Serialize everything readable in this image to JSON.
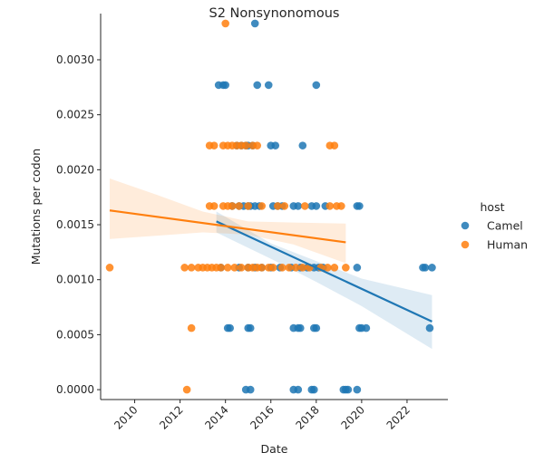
{
  "chart_data": {
    "type": "scatter",
    "title": "S2 Nonsynonomous",
    "xlabel": "Date",
    "ylabel": "Mutations per codon",
    "xlim": [
      2008.5,
      2023.8
    ],
    "ylim": [
      -9e-05,
      0.00342
    ],
    "x_ticks": [
      2010,
      2012,
      2014,
      2016,
      2018,
      2020,
      2022
    ],
    "x_tick_labels": [
      "2010",
      "2012",
      "2014",
      "2016",
      "2018",
      "2020",
      "2022"
    ],
    "y_ticks": [
      0,
      0.0005,
      0.001,
      0.0015,
      0.002,
      0.0025,
      0.003
    ],
    "y_tick_labels": [
      "0.0000",
      "0.0005",
      "0.0010",
      "0.0015",
      "0.0020",
      "0.0025",
      "0.0030"
    ],
    "grid": false,
    "legend": {
      "title": "host",
      "position": "right"
    },
    "series": [
      {
        "name": "Camel",
        "color": "#1f77b4",
        "points": [
          [
            2015.3,
            0.00333
          ],
          [
            2013.7,
            0.00277
          ],
          [
            2013.9,
            0.00277
          ],
          [
            2014.0,
            0.00277
          ],
          [
            2015.4,
            0.00277
          ],
          [
            2015.9,
            0.00277
          ],
          [
            2018.0,
            0.00277
          ],
          [
            2014.5,
            0.00222
          ],
          [
            2014.7,
            0.00222
          ],
          [
            2014.9,
            0.00222
          ],
          [
            2015.0,
            0.00222
          ],
          [
            2015.2,
            0.00222
          ],
          [
            2016.0,
            0.00222
          ],
          [
            2016.2,
            0.00222
          ],
          [
            2017.4,
            0.00222
          ],
          [
            2014.3,
            0.00167
          ],
          [
            2014.6,
            0.00167
          ],
          [
            2014.8,
            0.00167
          ],
          [
            2015.0,
            0.00167
          ],
          [
            2015.1,
            0.00167
          ],
          [
            2015.3,
            0.00167
          ],
          [
            2015.5,
            0.00167
          ],
          [
            2016.1,
            0.00167
          ],
          [
            2016.3,
            0.00167
          ],
          [
            2016.5,
            0.00167
          ],
          [
            2017.0,
            0.00167
          ],
          [
            2017.2,
            0.00167
          ],
          [
            2017.8,
            0.00167
          ],
          [
            2018.0,
            0.00167
          ],
          [
            2018.4,
            0.00167
          ],
          [
            2019.8,
            0.00167
          ],
          [
            2019.9,
            0.00167
          ],
          [
            2013.8,
            0.00111
          ],
          [
            2014.6,
            0.00111
          ],
          [
            2015.0,
            0.00111
          ],
          [
            2015.3,
            0.00111
          ],
          [
            2015.6,
            0.00111
          ],
          [
            2016.0,
            0.00111
          ],
          [
            2016.4,
            0.00111
          ],
          [
            2016.9,
            0.00111
          ],
          [
            2017.3,
            0.00111
          ],
          [
            2017.6,
            0.00111
          ],
          [
            2017.9,
            0.00111
          ],
          [
            2018.1,
            0.00111
          ],
          [
            2018.3,
            0.00111
          ],
          [
            2019.8,
            0.00111
          ],
          [
            2022.7,
            0.00111
          ],
          [
            2022.8,
            0.00111
          ],
          [
            2023.1,
            0.00111
          ],
          [
            2014.1,
            0.00056
          ],
          [
            2014.2,
            0.00056
          ],
          [
            2015.0,
            0.00056
          ],
          [
            2015.1,
            0.00056
          ],
          [
            2017.0,
            0.00056
          ],
          [
            2017.2,
            0.00056
          ],
          [
            2017.3,
            0.00056
          ],
          [
            2017.9,
            0.00056
          ],
          [
            2018.0,
            0.00056
          ],
          [
            2019.9,
            0.00056
          ],
          [
            2020.0,
            0.00056
          ],
          [
            2020.2,
            0.00056
          ],
          [
            2023.0,
            0.00056
          ],
          [
            2014.9,
            0.0
          ],
          [
            2015.1,
            0.0
          ],
          [
            2017.0,
            0.0
          ],
          [
            2017.2,
            0.0
          ],
          [
            2017.8,
            0.0
          ],
          [
            2017.9,
            0.0
          ],
          [
            2019.2,
            0.0
          ],
          [
            2019.3,
            0.0
          ],
          [
            2019.4,
            0.0
          ],
          [
            2019.8,
            0.0
          ]
        ],
        "fit": {
          "x": [
            2013.6,
            2023.1
          ],
          "y": [
            0.00153,
            0.00062
          ]
        },
        "ci_upper": [
          [
            2013.6,
            0.00162
          ],
          [
            2016,
            0.00133
          ],
          [
            2018,
            0.00117
          ],
          [
            2020,
            0.00101
          ],
          [
            2023.1,
            0.00086
          ]
        ],
        "ci_lower": [
          [
            2013.6,
            0.00143
          ],
          [
            2016,
            0.00119
          ],
          [
            2018,
            0.00098
          ],
          [
            2020,
            0.00076
          ],
          [
            2023.1,
            0.00037
          ]
        ]
      },
      {
        "name": "Human",
        "color": "#ff7f0e",
        "points": [
          [
            2014.0,
            0.00333
          ],
          [
            2013.3,
            0.00222
          ],
          [
            2013.5,
            0.00222
          ],
          [
            2013.9,
            0.00222
          ],
          [
            2014.1,
            0.00222
          ],
          [
            2014.3,
            0.00222
          ],
          [
            2014.5,
            0.00222
          ],
          [
            2014.7,
            0.00222
          ],
          [
            2014.9,
            0.00222
          ],
          [
            2015.2,
            0.00222
          ],
          [
            2015.4,
            0.00222
          ],
          [
            2018.6,
            0.00222
          ],
          [
            2018.8,
            0.00222
          ],
          [
            2013.3,
            0.00167
          ],
          [
            2013.5,
            0.00167
          ],
          [
            2013.9,
            0.00167
          ],
          [
            2014.1,
            0.00167
          ],
          [
            2014.3,
            0.00167
          ],
          [
            2014.6,
            0.00167
          ],
          [
            2015.0,
            0.00167
          ],
          [
            2015.6,
            0.00167
          ],
          [
            2016.3,
            0.00167
          ],
          [
            2016.6,
            0.00167
          ],
          [
            2017.5,
            0.00167
          ],
          [
            2018.6,
            0.00167
          ],
          [
            2018.9,
            0.00167
          ],
          [
            2019.1,
            0.00167
          ],
          [
            2008.9,
            0.00111
          ],
          [
            2012.2,
            0.00111
          ],
          [
            2012.5,
            0.00111
          ],
          [
            2012.8,
            0.00111
          ],
          [
            2013.0,
            0.00111
          ],
          [
            2013.2,
            0.00111
          ],
          [
            2013.4,
            0.00111
          ],
          [
            2013.6,
            0.00111
          ],
          [
            2013.8,
            0.00111
          ],
          [
            2014.1,
            0.00111
          ],
          [
            2014.4,
            0.00111
          ],
          [
            2014.7,
            0.00111
          ],
          [
            2015.0,
            0.00111
          ],
          [
            2015.2,
            0.00111
          ],
          [
            2015.4,
            0.00111
          ],
          [
            2015.6,
            0.00111
          ],
          [
            2015.9,
            0.00111
          ],
          [
            2016.1,
            0.00111
          ],
          [
            2016.5,
            0.00111
          ],
          [
            2016.8,
            0.00111
          ],
          [
            2017.1,
            0.00111
          ],
          [
            2017.4,
            0.00111
          ],
          [
            2017.7,
            0.00111
          ],
          [
            2018.2,
            0.00111
          ],
          [
            2018.5,
            0.00111
          ],
          [
            2018.8,
            0.00111
          ],
          [
            2019.3,
            0.00111
          ],
          [
            2012.5,
            0.00056
          ],
          [
            2012.3,
            0.0
          ]
        ],
        "fit": {
          "x": [
            2008.9,
            2019.3
          ],
          "y": [
            0.00163,
            0.00134
          ]
        },
        "ci_upper": [
          [
            2008.9,
            0.00192
          ],
          [
            2011,
            0.00177
          ],
          [
            2013,
            0.00162
          ],
          [
            2015,
            0.00153
          ],
          [
            2017,
            0.00152
          ],
          [
            2019.3,
            0.00151
          ]
        ],
        "ci_lower": [
          [
            2008.9,
            0.00137
          ],
          [
            2011,
            0.0014
          ],
          [
            2013,
            0.00143
          ],
          [
            2015,
            0.00141
          ],
          [
            2017,
            0.00132
          ],
          [
            2019.3,
            0.00115
          ]
        ]
      }
    ]
  }
}
